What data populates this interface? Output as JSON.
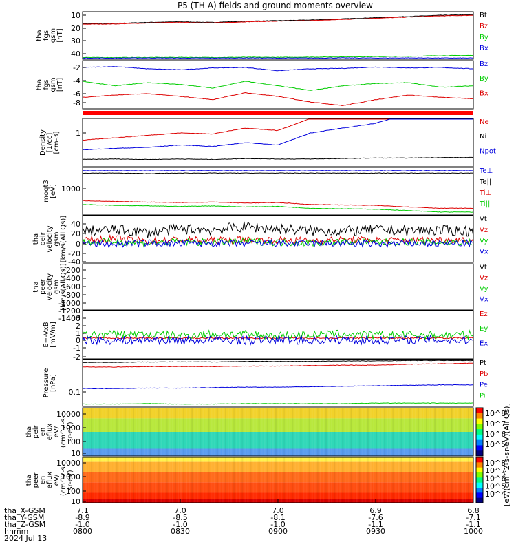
{
  "title": "P5 (TH-A) fields and ground moments overview",
  "x_axis": {
    "rows": [
      {
        "label": "tha_X-GSM",
        "values": [
          "7.1",
          "7.0",
          "7.0",
          "6.9",
          "6.8"
        ]
      },
      {
        "label": "tha_Y-GSM",
        "values": [
          "-8.9",
          "-8.5",
          "-8.1",
          "-7.6",
          "-7.1"
        ]
      },
      {
        "label": "tha_Z-GSM",
        "values": [
          "-1.0",
          "-1.0",
          "-1.0",
          "-1.1",
          "-1.1"
        ]
      },
      {
        "label": "hhmm",
        "values": [
          "0800",
          "0830",
          "0900",
          "0930",
          "1000"
        ]
      }
    ],
    "date": "2024 Jul 13"
  },
  "chart_data": [
    {
      "type": "line",
      "id": "fgs_btot",
      "ylabel": [
        "tha",
        "fgs",
        "gsm",
        "[nT]"
      ],
      "yticks": [
        "10",
        "20",
        "30",
        "40"
      ],
      "ylim": [
        5,
        45
      ],
      "series": [
        {
          "name": "Bt",
          "color": "#000000",
          "values": [
            35,
            35.2,
            36,
            36.5,
            36,
            37,
            37.5,
            38,
            39,
            40,
            41,
            42,
            42.5
          ]
        },
        {
          "name": "Bz",
          "color": "#dd0000",
          "values": [
            34.5,
            34.7,
            35.5,
            36,
            35.5,
            36.5,
            37,
            37.5,
            38.5,
            39.5,
            40.5,
            41.5,
            42
          ]
        },
        {
          "name": "By",
          "color": "#00cc00",
          "values": [
            6.5,
            6.4,
            6.5,
            6.6,
            6.5,
            6.7,
            6.6,
            6.8,
            7,
            7.2,
            7.5,
            8,
            8.2
          ]
        },
        {
          "name": "Bx",
          "color": "#0000dd",
          "values": [
            6,
            6,
            6.1,
            6,
            6,
            6.1,
            6,
            6,
            6.1,
            6,
            6.1,
            6,
            6
          ]
        }
      ]
    },
    {
      "type": "line",
      "id": "fgs_comp",
      "ylabel": [
        "tha",
        "fgs",
        "gsm",
        "[nT]"
      ],
      "yticks": [
        "-2",
        "-4",
        "-6",
        "-8",
        "-10"
      ],
      "ylim": [
        -11.5,
        -1
      ],
      "series": [
        {
          "name": "Bz",
          "color": "#0000dd",
          "values": [
            -2.5,
            -2.3,
            -2.8,
            -3,
            -2.6,
            -2.5,
            -3.2,
            -2.8,
            -2.7,
            -2.4,
            -2.6,
            -2.5,
            -2.8
          ]
        },
        {
          "name": "By",
          "color": "#00cc00",
          "values": [
            -5.5,
            -6.5,
            -5.8,
            -6.2,
            -7,
            -5.5,
            -6.5,
            -7.5,
            -6.5,
            -6,
            -5.8,
            -6.8,
            -6.5
          ]
        },
        {
          "name": "Bx",
          "color": "#dd0000",
          "values": [
            -9,
            -8.5,
            -8.2,
            -8.8,
            -9.5,
            -8,
            -8.8,
            -10,
            -10.8,
            -9.5,
            -8.5,
            -9,
            -9.3
          ]
        }
      ]
    },
    {
      "type": "line",
      "id": "density",
      "ylabel": [
        "Density",
        "[1/cc]",
        "[cm-3]"
      ],
      "yticks": [
        "1"
      ],
      "ylim": [
        0,
        1
      ],
      "log": true,
      "series": [
        {
          "name": "Ne",
          "color": "#dd0000",
          "values": [
            0.55,
            0.6,
            0.65,
            0.7,
            0.68,
            0.8,
            0.75,
            1,
            1.1,
            1.3,
            1.6,
            1.8,
            1.9
          ]
        },
        {
          "name": "Ni",
          "color": "#000000",
          "values": [
            0.15,
            0.16,
            0.15,
            0.16,
            0.15,
            0.17,
            0.16,
            0.16,
            0.17,
            0.18,
            0.18,
            0.19,
            0.19
          ]
        },
        {
          "name": "Npot",
          "color": "#0000dd",
          "values": [
            0.35,
            0.38,
            0.4,
            0.45,
            0.42,
            0.5,
            0.45,
            0.7,
            0.8,
            0.9,
            1.1,
            1.3,
            1.4
          ]
        }
      ]
    },
    {
      "type": "line",
      "id": "temp",
      "ylabel": [
        "moqt3",
        "[eV]"
      ],
      "yticks": [
        "1000"
      ],
      "ylim": [
        0,
        1
      ],
      "log": true,
      "series": [
        {
          "name": "Te⊥",
          "color": "#0000dd",
          "values": [
            0.93,
            0.93,
            0.93,
            0.93,
            0.93,
            0.93,
            0.93,
            0.93,
            0.93,
            0.93,
            0.93,
            0.93,
            0.93
          ]
        },
        {
          "name": "Te||",
          "color": "#000000",
          "values": [
            0.88,
            0.88,
            0.87,
            0.88,
            0.88,
            0.88,
            0.88,
            0.88,
            0.88,
            0.88,
            0.88,
            0.88,
            0.88
          ]
        },
        {
          "name": "Ti⊥",
          "color": "#dd0000",
          "values": [
            0.3,
            0.28,
            0.27,
            0.26,
            0.27,
            0.25,
            0.26,
            0.22,
            0.21,
            0.2,
            0.17,
            0.14,
            0.14
          ]
        },
        {
          "name": "Ti||",
          "color": "#00cc00",
          "values": [
            0.22,
            0.2,
            0.19,
            0.18,
            0.19,
            0.17,
            0.18,
            0.14,
            0.13,
            0.12,
            0.09,
            0.06,
            0.06
          ]
        }
      ]
    },
    {
      "type": "line",
      "id": "ion_vel",
      "ylabel": [
        "tha",
        "peir",
        "velocity",
        "gsm",
        "[km/s(All Qs)]"
      ],
      "yticks": [
        "40",
        "20",
        "0",
        "-20",
        "-40"
      ],
      "ylim": [
        -45,
        60
      ],
      "series": [
        {
          "name": "Vt",
          "color": "#000000",
          "values": [
            25,
            28,
            22,
            30,
            28,
            35,
            30,
            26,
            25,
            28,
            26,
            27,
            25
          ]
        },
        {
          "name": "Vz",
          "color": "#dd0000",
          "values": [
            5,
            8,
            3,
            6,
            4,
            6,
            5,
            4,
            6,
            5,
            4,
            6,
            5
          ]
        },
        {
          "name": "Vy",
          "color": "#00cc00",
          "values": [
            0,
            2,
            -2,
            1,
            0,
            2,
            0,
            -1,
            1,
            0,
            1,
            0,
            0
          ]
        },
        {
          "name": "Vx",
          "color": "#0000dd",
          "values": [
            -2,
            -4,
            -1,
            -3,
            -2,
            -3,
            -2,
            -3,
            -2,
            -4,
            -2,
            -3,
            -2
          ]
        }
      ]
    },
    {
      "type": "line",
      "id": "ele_vel",
      "ylabel": [
        "tha",
        "peer",
        "velocity",
        "gsm",
        "[km/s(All Qs)]"
      ],
      "yticks": [
        "-200",
        "-400",
        "-600",
        "-800",
        "-1000",
        "-1200",
        "-1400"
      ],
      "ylim": [
        -1450,
        -100
      ],
      "legend": [
        "Vt",
        "Vz",
        "Vy",
        "Vx"
      ],
      "series": []
    },
    {
      "type": "line",
      "id": "efield",
      "ylabel": [
        "E=-VxB",
        "[mV/m]"
      ],
      "yticks": [
        "3",
        "2",
        "1",
        "0",
        "-1",
        "-2"
      ],
      "ylim": [
        -2.5,
        3.3
      ],
      "series": [
        {
          "name": "Ez",
          "color": "#dd0000",
          "values": [
            0,
            0,
            0,
            0,
            0,
            0,
            0,
            0,
            0,
            0,
            0,
            0,
            0
          ]
        },
        {
          "name": "Ey",
          "color": "#00cc00",
          "values": [
            0.3,
            0.5,
            0.4,
            0.3,
            0.5,
            0.4,
            0.3,
            0.4,
            0.5,
            0.3,
            0.4,
            0.3,
            0.4
          ]
        },
        {
          "name": "Ex",
          "color": "#0000dd",
          "values": [
            -0.2,
            -0.3,
            -0.2,
            -0.3,
            -0.2,
            -0.3,
            -0.2,
            -0.3,
            -0.2,
            -0.3,
            -0.2,
            -0.2,
            -0.3
          ]
        }
      ]
    },
    {
      "type": "line",
      "id": "pressure",
      "ylabel": [
        "Pressure",
        "[nPa]"
      ],
      "yticks": [
        "0.1"
      ],
      "ylim": [
        0,
        1
      ],
      "log": true,
      "series": [
        {
          "name": "Pt",
          "color": "#000000",
          "values": [
            0.94,
            0.94,
            0.95,
            0.95,
            0.95,
            0.96,
            0.96,
            0.96,
            0.97,
            0.97,
            0.98,
            0.98,
            0.98
          ]
        },
        {
          "name": "Pb",
          "color": "#dd0000",
          "values": [
            0.84,
            0.84,
            0.85,
            0.85,
            0.85,
            0.86,
            0.86,
            0.87,
            0.88,
            0.88,
            0.9,
            0.91,
            0.92
          ]
        },
        {
          "name": "Pe",
          "color": "#0000dd",
          "values": [
            0.38,
            0.38,
            0.39,
            0.39,
            0.4,
            0.41,
            0.41,
            0.42,
            0.43,
            0.44,
            0.45,
            0.46,
            0.46
          ]
        },
        {
          "name": "Pi",
          "color": "#00cc00",
          "values": [
            0.05,
            0.05,
            0.06,
            0.05,
            0.05,
            0.06,
            0.06,
            0.06,
            0.06,
            0.07,
            0.07,
            0.07,
            0.07
          ]
        }
      ]
    },
    {
      "type": "heatmap",
      "id": "ion_spec",
      "ylabel": [
        "tha",
        "peir",
        "en",
        "eflux",
        "eV/",
        "(cm^2-s-",
        "sr-eV)"
      ],
      "yticks": [
        "10000",
        "1000",
        "100",
        "10"
      ],
      "colorbar_ticks": [
        "10^8",
        "10^7",
        "10^6",
        "10^5"
      ],
      "colorbar_label": "[eV/(cm^2-s-sr-eV)(All Qs)]",
      "bands": [
        {
          "range": [
            0,
            0.22
          ],
          "color": "#f2d22a"
        },
        {
          "range": [
            0.22,
            0.5
          ],
          "color": "#b8e83c"
        },
        {
          "range": [
            0.5,
            0.85
          ],
          "color": "#2fd8b8"
        },
        {
          "range": [
            0.85,
            1
          ],
          "color": "#5a9cf0"
        }
      ]
    },
    {
      "type": "heatmap",
      "id": "ele_spec",
      "ylabel": [
        "tha",
        "peer",
        "en",
        "eflux",
        "eV/",
        "(cm^2-s-",
        "sr-eV)"
      ],
      "yticks": [
        "10000",
        "1000",
        "100",
        "10"
      ],
      "colorbar_ticks": [
        "10^8",
        "10^7",
        "10^6",
        "10^5",
        "10^4"
      ],
      "bands": [
        {
          "range": [
            0,
            0.1
          ],
          "color": "#fff24a"
        },
        {
          "range": [
            0.1,
            0.32
          ],
          "color": "#ffb030"
        },
        {
          "range": [
            0.32,
            0.55
          ],
          "color": "#ff6a1a"
        },
        {
          "range": [
            0.55,
            0.78
          ],
          "color": "#ff4d10"
        },
        {
          "range": [
            0.78,
            0.92
          ],
          "color": "#ff2a00"
        },
        {
          "range": [
            0.92,
            1
          ],
          "color": "#d80000"
        }
      ]
    }
  ]
}
